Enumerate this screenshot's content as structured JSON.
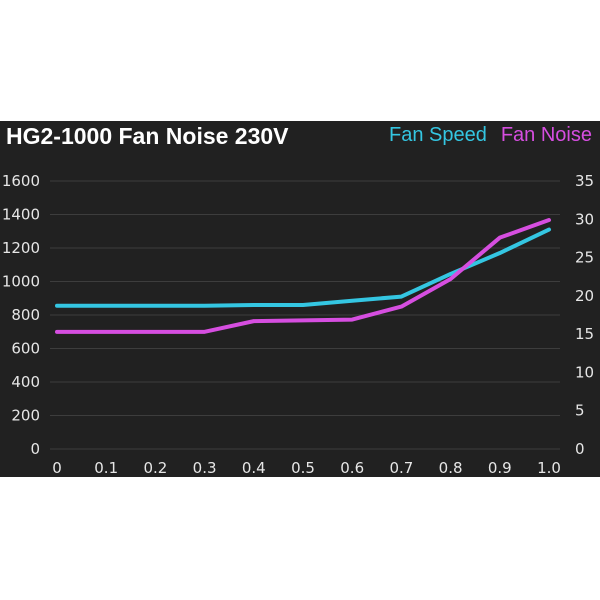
{
  "chart_data": {
    "type": "line",
    "title": "HG2-1000 Fan Noise 230V",
    "x": [
      0,
      0.1,
      0.2,
      0.3,
      0.4,
      0.5,
      0.6,
      0.7,
      0.8,
      0.9,
      1.0
    ],
    "x_ticks": [
      "0",
      "0.1",
      "0.2",
      "0.3",
      "0.4",
      "0.5",
      "0.6",
      "0.7",
      "0.8",
      "0.9",
      "1.0"
    ],
    "xlim": [
      0,
      1.0
    ],
    "y_left_ticks": [
      "0",
      "200",
      "400",
      "600",
      "800",
      "1000",
      "1200",
      "1400",
      "1600"
    ],
    "y_left_lim": [
      0,
      1600
    ],
    "y_right_ticks": [
      "0",
      "5",
      "10",
      "15",
      "20",
      "25",
      "30",
      "35"
    ],
    "y_right_lim": [
      0,
      35
    ],
    "grid": true,
    "legend_position": "top-right",
    "series": [
      {
        "name": "Fan Speed",
        "axis": "left",
        "color": "#34c6e2",
        "values": [
          855,
          855,
          855,
          855,
          860,
          860,
          885,
          910,
          1045,
          1170,
          1310
        ]
      },
      {
        "name": "Fan Noise",
        "axis": "right",
        "color": "#d64ee0",
        "values": [
          15.3,
          15.3,
          15.3,
          15.3,
          16.7,
          16.8,
          16.9,
          18.6,
          22.2,
          27.6,
          29.9
        ]
      }
    ]
  }
}
